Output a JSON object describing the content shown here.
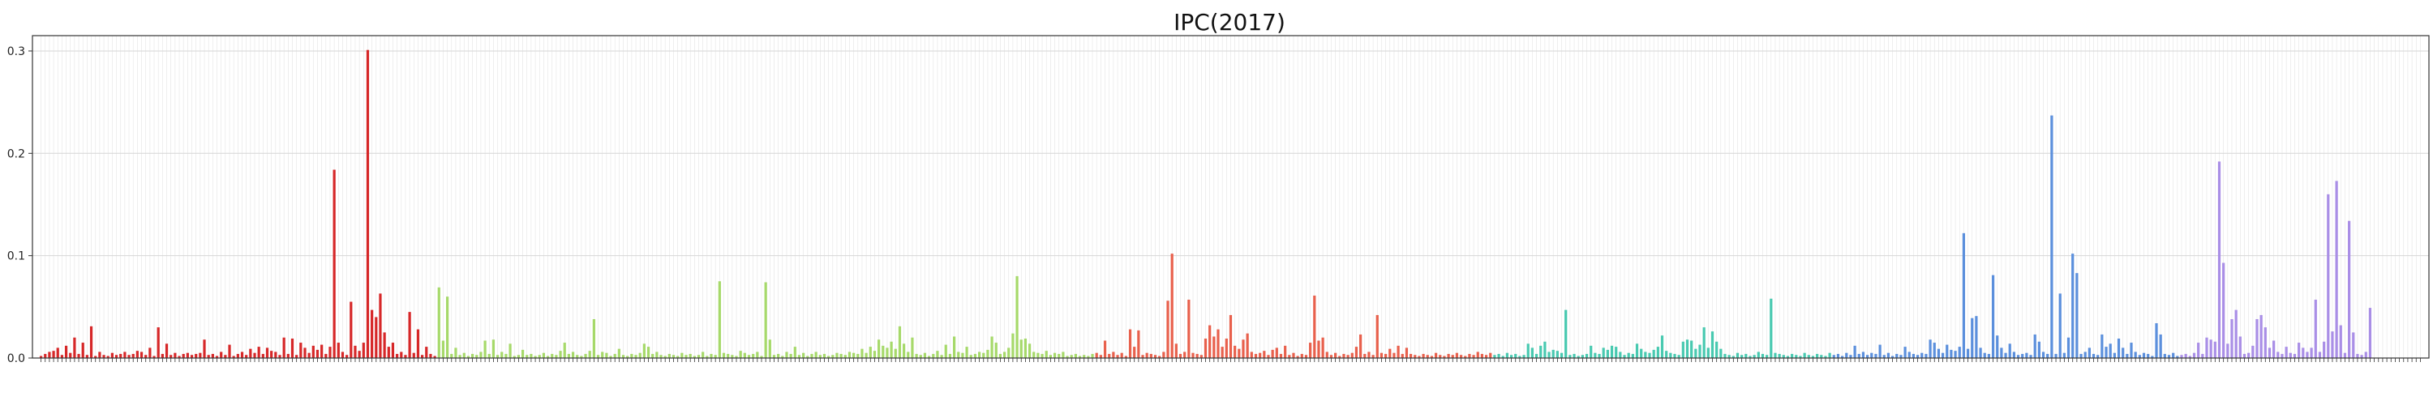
{
  "chart_data": {
    "type": "bar",
    "title": "IPC(2017)",
    "xlabel": "",
    "ylabel": "",
    "ylim": [
      0,
      0.315
    ],
    "yticks": [
      "0.0",
      "0.1",
      "0.2",
      "0.3"
    ],
    "grid": true,
    "legend": "none",
    "groups": [
      {
        "color": "#d62728",
        "values": [
          0.002,
          0.004,
          0.006,
          0.007,
          0.01,
          0.003,
          0.012,
          0.005,
          0.02,
          0.004,
          0.015,
          0.003,
          0.031,
          0.002,
          0.006,
          0.003,
          0.002,
          0.005,
          0.003,
          0.004,
          0.006,
          0.003,
          0.004,
          0.007,
          0.006,
          0.003,
          0.01,
          0.002,
          0.03,
          0.004,
          0.014,
          0.003,
          0.005,
          0.002,
          0.004,
          0.005,
          0.003,
          0.004,
          0.005,
          0.018,
          0.003,
          0.004,
          0.002,
          0.006,
          0.003,
          0.013,
          0.002,
          0.004,
          0.006,
          0.003,
          0.009,
          0.005,
          0.011,
          0.004,
          0.01,
          0.007,
          0.006,
          0.003,
          0.02,
          0.004,
          0.019,
          0.003,
          0.015,
          0.01,
          0.005,
          0.012,
          0.008,
          0.013,
          0.004,
          0.011,
          0.184,
          0.015,
          0.006,
          0.003,
          0.055,
          0.012,
          0.007,
          0.015,
          0.301,
          0.047,
          0.04,
          0.063,
          0.025,
          0.011,
          0.015,
          0.004,
          0.006,
          0.003,
          0.045,
          0.005,
          0.028,
          0.003,
          0.011,
          0.004,
          0.002
        ]
      },
      {
        "color": "#a6d96a",
        "values": [
          0.069,
          0.017,
          0.06,
          0.004,
          0.01,
          0.003,
          0.005,
          0.002,
          0.004,
          0.003,
          0.006,
          0.017,
          0.004,
          0.018,
          0.003,
          0.006,
          0.004,
          0.014,
          0.002,
          0.003,
          0.008,
          0.003,
          0.004,
          0.002,
          0.003,
          0.005,
          0.002,
          0.004,
          0.003,
          0.007,
          0.015,
          0.004,
          0.006,
          0.003,
          0.002,
          0.004,
          0.007,
          0.038,
          0.003,
          0.006,
          0.005,
          0.002,
          0.004,
          0.009,
          0.003,
          0.002,
          0.004,
          0.003,
          0.005,
          0.014,
          0.011,
          0.004,
          0.006,
          0.003,
          0.002,
          0.004,
          0.003,
          0.002,
          0.005,
          0.003,
          0.004,
          0.002,
          0.003,
          0.006,
          0.002,
          0.004,
          0.003,
          0.075,
          0.005,
          0.004,
          0.003,
          0.002,
          0.007,
          0.005,
          0.003,
          0.004,
          0.006,
          0.002,
          0.074,
          0.018,
          0.003,
          0.004,
          0.002,
          0.006,
          0.004,
          0.011,
          0.003,
          0.005,
          0.002,
          0.004,
          0.006,
          0.003,
          0.004,
          0.002,
          0.003,
          0.005,
          0.004,
          0.003,
          0.006,
          0.005,
          0.004,
          0.009,
          0.005,
          0.011,
          0.007,
          0.018,
          0.012,
          0.01,
          0.016,
          0.009,
          0.031,
          0.014,
          0.006,
          0.02,
          0.004,
          0.003,
          0.005,
          0.002,
          0.004,
          0.007,
          0.003,
          0.013,
          0.004,
          0.021,
          0.006,
          0.005,
          0.011,
          0.003,
          0.004,
          0.006,
          0.005,
          0.008,
          0.021,
          0.015,
          0.004,
          0.006,
          0.01,
          0.024,
          0.08,
          0.018,
          0.019,
          0.014,
          0.006,
          0.005,
          0.004,
          0.007,
          0.003,
          0.005,
          0.004,
          0.006,
          0.002,
          0.003,
          0.004,
          0.002,
          0.003,
          0.002,
          0.004
        ]
      },
      {
        "color": "#e8604c",
        "values": [
          0.005,
          0.003,
          0.017,
          0.004,
          0.006,
          0.003,
          0.005,
          0.002,
          0.028,
          0.011,
          0.027,
          0.003,
          0.005,
          0.004,
          0.003,
          0.002,
          0.006,
          0.056,
          0.102,
          0.014,
          0.004,
          0.006,
          0.057,
          0.005,
          0.004,
          0.003,
          0.019,
          0.032,
          0.021,
          0.028,
          0.011,
          0.019,
          0.042,
          0.012,
          0.009,
          0.018,
          0.024,
          0.006,
          0.004,
          0.005,
          0.007,
          0.003,
          0.008,
          0.01,
          0.004,
          0.012,
          0.003,
          0.005,
          0.002,
          0.004,
          0.003,
          0.015,
          0.061,
          0.017,
          0.02,
          0.006,
          0.003,
          0.005,
          0.002,
          0.004,
          0.003,
          0.005,
          0.011,
          0.023,
          0.004,
          0.006,
          0.003,
          0.042,
          0.005,
          0.004,
          0.009,
          0.005,
          0.012,
          0.004,
          0.01,
          0.004,
          0.003,
          0.002,
          0.004,
          0.003,
          0.002,
          0.005,
          0.003,
          0.002,
          0.004,
          0.003,
          0.005,
          0.003,
          0.002,
          0.004,
          0.003,
          0.006,
          0.004,
          0.003,
          0.005
        ]
      },
      {
        "color": "#48c9b0",
        "values": [
          0.003,
          0.004,
          0.002,
          0.005,
          0.003,
          0.004,
          0.002,
          0.003,
          0.014,
          0.01,
          0.004,
          0.012,
          0.016,
          0.006,
          0.008,
          0.007,
          0.005,
          0.047,
          0.003,
          0.004,
          0.002,
          0.003,
          0.004,
          0.012,
          0.005,
          0.004,
          0.01,
          0.008,
          0.012,
          0.011,
          0.006,
          0.003,
          0.005,
          0.004,
          0.014,
          0.009,
          0.006,
          0.005,
          0.008,
          0.011,
          0.022,
          0.007,
          0.005,
          0.004,
          0.003,
          0.016,
          0.018,
          0.017,
          0.009,
          0.013,
          0.03,
          0.01,
          0.026,
          0.016,
          0.009,
          0.004,
          0.003,
          0.002,
          0.005,
          0.003,
          0.004,
          0.002,
          0.003,
          0.006,
          0.004,
          0.003,
          0.058,
          0.005,
          0.004,
          0.003,
          0.002,
          0.004,
          0.003,
          0.002,
          0.005,
          0.003,
          0.002,
          0.004,
          0.003,
          0.002,
          0.005
        ]
      },
      {
        "color": "#5b8fdc",
        "values": [
          0.003,
          0.004,
          0.002,
          0.005,
          0.003,
          0.012,
          0.004,
          0.006,
          0.003,
          0.005,
          0.004,
          0.013,
          0.003,
          0.005,
          0.002,
          0.004,
          0.003,
          0.011,
          0.006,
          0.004,
          0.003,
          0.005,
          0.004,
          0.018,
          0.015,
          0.009,
          0.005,
          0.013,
          0.008,
          0.007,
          0.011,
          0.122,
          0.009,
          0.039,
          0.041,
          0.01,
          0.005,
          0.004,
          0.081,
          0.022,
          0.01,
          0.005,
          0.014,
          0.006,
          0.003,
          0.004,
          0.005,
          0.003,
          0.023,
          0.016,
          0.006,
          0.004,
          0.237,
          0.004,
          0.063,
          0.005,
          0.02,
          0.102,
          0.083,
          0.004,
          0.006,
          0.01,
          0.004,
          0.003,
          0.023,
          0.011,
          0.014,
          0.005,
          0.019,
          0.01,
          0.004,
          0.015,
          0.006,
          0.003,
          0.005,
          0.004,
          0.002,
          0.034,
          0.023,
          0.004,
          0.003,
          0.005,
          0.002
        ]
      },
      {
        "color": "#a98ee6",
        "values": [
          0.003,
          0.004,
          0.002,
          0.005,
          0.015,
          0.004,
          0.02,
          0.018,
          0.016,
          0.192,
          0.093,
          0.014,
          0.038,
          0.047,
          0.021,
          0.004,
          0.005,
          0.012,
          0.038,
          0.042,
          0.03,
          0.01,
          0.017,
          0.006,
          0.004,
          0.011,
          0.005,
          0.004,
          0.015,
          0.01,
          0.006,
          0.01,
          0.057,
          0.006,
          0.016,
          0.16,
          0.026,
          0.173,
          0.032,
          0.005,
          0.134,
          0.025,
          0.004,
          0.003,
          0.006,
          0.049
        ]
      }
    ],
    "tail_empty_slots": 12
  }
}
